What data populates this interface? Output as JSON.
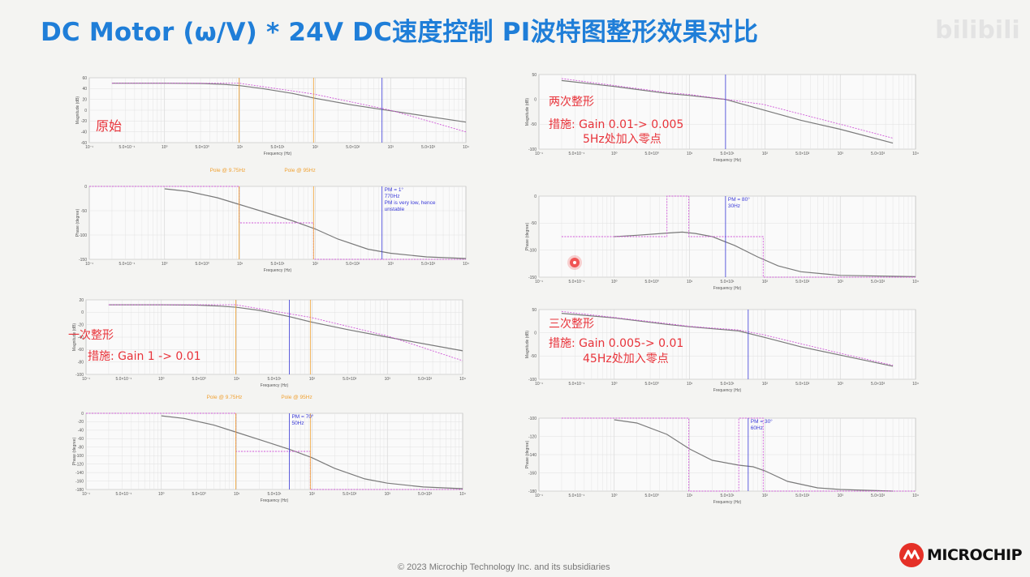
{
  "slide": {
    "title": "DC Motor (ω/V) * 24V DC速度控制 PI波特图整形效果对比",
    "watermark": "bilibili",
    "footer": "© 2023 Microchip Technology Inc. and its subsidiaries",
    "logo_text": "MICROCHIP"
  },
  "labels": {
    "original": "原始",
    "first": "一次整形",
    "first_measure": "措施:  Gain 1 -> 0.01",
    "second": "两次整形",
    "second_measure": "措施: Gain 0.01-> 0.005",
    "second_zero": "5Hz处加入零点",
    "third": "三次整形",
    "third_measure": "措施: Gain 0.005-> 0.01",
    "third_zero": "45Hz处加入零点"
  },
  "colors": {
    "title": "#1f7ed8",
    "curve": "#7a7a7a",
    "asymptote": "#d05ad8",
    "pole": "#f0a030",
    "pm": "#3a3ad8",
    "red": "#e8333a"
  },
  "chart_data": [
    {
      "id": "orig_mag",
      "type": "line",
      "xscale": "log",
      "xlim": [
        0.1,
        10000
      ],
      "ylim": [
        -60,
        60
      ],
      "ytick_labels": [
        "60",
        "40",
        "20",
        "0",
        "-20",
        "-40",
        "-60"
      ],
      "xtick_labels": [
        "10⁻¹",
        "5.0×10⁻¹",
        "10⁰",
        "5.0×10⁰",
        "10¹",
        "5.0×10¹",
        "10²",
        "5.0×10²",
        "10³",
        "5.0×10³",
        "10⁴"
      ],
      "xlabel": "Frequency (Hz)",
      "ylabel": "Magnitude (dB)",
      "series": [
        {
          "role": "curve",
          "x": [
            0.2,
            1,
            3,
            6,
            10,
            20,
            50,
            100,
            300,
            1000,
            10000
          ],
          "y": [
            50,
            50,
            49.5,
            48,
            45.5,
            40,
            31,
            22,
            10,
            -1,
            -22
          ]
        },
        {
          "role": "asymptote",
          "x": [
            0.2,
            9.75,
            95,
            1000,
            10000
          ],
          "y": [
            50,
            50,
            30,
            0,
            -40
          ]
        }
      ],
      "markers": [
        {
          "kind": "pole",
          "x": 9.75,
          "label": ""
        },
        {
          "kind": "pole",
          "x": 95,
          "label": ""
        },
        {
          "kind": "pm",
          "x": 770,
          "label": ""
        }
      ]
    },
    {
      "id": "orig_phase",
      "type": "line",
      "xscale": "log",
      "xlim": [
        0.1,
        10000
      ],
      "ylim": [
        -180,
        0
      ],
      "ytick_labels": [
        "0",
        "-50",
        "-100",
        "-150"
      ],
      "xtick_labels": [
        "10⁻¹",
        "5.0×10⁻¹",
        "10⁰",
        "5.0×10⁰",
        "10¹",
        "5.0×10¹",
        "10²",
        "5.0×10²",
        "10³",
        "5.0×10³",
        "10⁴"
      ],
      "xlabel": "Frequency (Hz)",
      "ylabel": "Phase (degree)",
      "series": [
        {
          "role": "curve",
          "x": [
            1,
            2,
            5,
            10,
            20,
            50,
            100,
            200,
            500,
            1000,
            3000,
            10000
          ],
          "y": [
            -6,
            -12,
            -28,
            -45,
            -62,
            -85,
            -105,
            -130,
            -155,
            -165,
            -174,
            -178
          ]
        },
        {
          "role": "asymptote",
          "x": [
            0.1,
            9.75,
            9.75,
            95,
            95,
            10000
          ],
          "y": [
            0,
            0,
            -90,
            -90,
            -180,
            -180
          ]
        }
      ],
      "markers": [
        {
          "kind": "pole",
          "x": 9.75,
          "label": "Pole @ 9.75Hz"
        },
        {
          "kind": "pole",
          "x": 95,
          "label": "Pole @ 95Hz"
        },
        {
          "kind": "pm",
          "x": 770,
          "label": "PM = 1°",
          "label2": "770Hz",
          "label3": "PM is very low, hence",
          "label4": "unstable"
        }
      ]
    },
    {
      "id": "first_mag",
      "type": "line",
      "xscale": "log",
      "xlim": [
        0.1,
        10000
      ],
      "ylim": [
        -100,
        20
      ],
      "ytick_labels": [
        "20",
        "0",
        "-20",
        "-40",
        "-60",
        "-80",
        "-100"
      ],
      "xtick_labels": [
        "10⁻¹",
        "5.0×10⁻¹",
        "10⁰",
        "5.0×10⁰",
        "10¹",
        "5.0×10¹",
        "10²",
        "5.0×10²",
        "10³",
        "5.0×10³",
        "10⁴"
      ],
      "xlabel": "Frequency (Hz)",
      "ylabel": "Magnitude (dB)",
      "series": [
        {
          "role": "curve",
          "x": [
            0.2,
            1,
            3,
            6,
            10,
            20,
            50,
            100,
            300,
            1000,
            10000
          ],
          "y": [
            12,
            12,
            11.5,
            10,
            8,
            3,
            -7,
            -16,
            -28,
            -40,
            -62
          ]
        },
        {
          "role": "asymptote",
          "x": [
            0.2,
            9.75,
            95,
            1000,
            10000
          ],
          "y": [
            12,
            12,
            -8,
            -38,
            -78
          ]
        }
      ],
      "markers": [
        {
          "kind": "pole",
          "x": 9.75,
          "label": ""
        },
        {
          "kind": "pole",
          "x": 95,
          "label": ""
        },
        {
          "kind": "pm",
          "x": 50,
          "label": ""
        }
      ]
    },
    {
      "id": "first_phase",
      "type": "line",
      "xscale": "log",
      "xlim": [
        0.1,
        10000
      ],
      "ylim": [
        -180,
        0
      ],
      "ytick_labels": [
        "0",
        "-20",
        "-40",
        "-60",
        "-80",
        "-100",
        "-120",
        "-140",
        "-160",
        "-180"
      ],
      "xtick_labels": [
        "10⁻¹",
        "5.0×10⁻¹",
        "10⁰",
        "5.0×10⁰",
        "10¹",
        "5.0×10¹",
        "10²",
        "5.0×10²",
        "10³",
        "5.0×10³",
        "10⁴"
      ],
      "xlabel": "Frequency (Hz)",
      "ylabel": "Phase (degree)",
      "series": [
        {
          "role": "curve",
          "x": [
            1,
            2,
            5,
            10,
            20,
            50,
            100,
            200,
            500,
            1000,
            3000,
            10000
          ],
          "y": [
            -6,
            -12,
            -28,
            -45,
            -62,
            -85,
            -105,
            -130,
            -155,
            -165,
            -174,
            -178
          ]
        },
        {
          "role": "asymptote",
          "x": [
            0.1,
            9.75,
            9.75,
            95,
            95,
            10000
          ],
          "y": [
            0,
            0,
            -90,
            -90,
            -180,
            -180
          ]
        }
      ],
      "markers": [
        {
          "kind": "pole",
          "x": 9.75,
          "label": "Pole @ 9.75Hz"
        },
        {
          "kind": "pole",
          "x": 95,
          "label": "Pole @ 95Hz"
        },
        {
          "kind": "pm",
          "x": 50,
          "label": "PM = 70°",
          "label2": "50Hz"
        }
      ]
    },
    {
      "id": "second_mag",
      "type": "line",
      "xscale": "log",
      "xlim": [
        0.1,
        10000
      ],
      "ylim": [
        -100,
        50
      ],
      "ytick_labels": [
        "50",
        "0",
        "-50",
        "-100"
      ],
      "xtick_labels": [
        "10⁻¹",
        "5.0×10⁻¹",
        "10⁰",
        "5.0×10⁰",
        "10¹",
        "5.0×10¹",
        "10²",
        "5.0×10²",
        "10³",
        "5.0×10³",
        "10⁴"
      ],
      "xlabel": "Frequency (Hz)",
      "ylabel": "Magnitude (dB)",
      "series": [
        {
          "role": "curve",
          "x": [
            0.2,
            1,
            5,
            10,
            30,
            100,
            300,
            1000,
            5000
          ],
          "y": [
            38,
            26,
            12,
            8,
            0,
            -22,
            -42,
            -60,
            -88
          ]
        },
        {
          "role": "asymptote",
          "x": [
            0.2,
            5,
            9.75,
            95,
            1000,
            5000
          ],
          "y": [
            42,
            14,
            10,
            -10,
            -50,
            -78
          ]
        }
      ],
      "markers": [
        {
          "kind": "pm",
          "x": 30,
          "label": ""
        }
      ]
    },
    {
      "id": "second_phase",
      "type": "line",
      "xscale": "log",
      "xlim": [
        0.1,
        10000
      ],
      "ylim": [
        -180,
        0
      ],
      "ytick_labels": [
        "0",
        "-50",
        "-100",
        "-150"
      ],
      "xtick_labels": [
        "10⁻¹",
        "5.0×10⁻¹",
        "10⁰",
        "5.0×10⁰",
        "10¹",
        "5.0×10¹",
        "10²",
        "5.0×10²",
        "10³",
        "5.0×10³",
        "10⁴"
      ],
      "xlabel": "Frequency (Hz)",
      "ylabel": "Phase (degree)",
      "series": [
        {
          "role": "curve",
          "x": [
            1,
            2,
            5,
            8,
            12,
            20,
            40,
            80,
            150,
            300,
            1000,
            10000
          ],
          "y": [
            -90,
            -87,
            -82,
            -80,
            -83,
            -90,
            -110,
            -135,
            -155,
            -168,
            -176,
            -179
          ]
        },
        {
          "role": "asymptote",
          "x": [
            0.2,
            5,
            5,
            9.75,
            9.75,
            95,
            95,
            10000
          ],
          "y": [
            -90,
            -90,
            0,
            0,
            -90,
            -90,
            -180,
            -180
          ]
        }
      ],
      "markers": [
        {
          "kind": "pm",
          "x": 30,
          "label": "PM = 80°",
          "label2": "30Hz"
        }
      ]
    },
    {
      "id": "third_mag",
      "type": "line",
      "xscale": "log",
      "xlim": [
        0.1,
        10000
      ],
      "ylim": [
        -100,
        50
      ],
      "ytick_labels": [
        "50",
        "0",
        "-50",
        "-100"
      ],
      "xtick_labels": [
        "10⁻¹",
        "5.0×10⁻¹",
        "10⁰",
        "5.0×10⁰",
        "10¹",
        "5.0×10¹",
        "10²",
        "5.0×10²",
        "10³",
        "5.0×10³",
        "10⁴"
      ],
      "xlabel": "Frequency (Hz)",
      "ylabel": "Magnitude (dB)",
      "series": [
        {
          "role": "curve",
          "x": [
            0.2,
            1,
            5,
            10,
            45,
            100,
            300,
            1000,
            5000
          ],
          "y": [
            42,
            32,
            18,
            13,
            4,
            -10,
            -30,
            -48,
            -72
          ]
        },
        {
          "role": "asymptote",
          "x": [
            0.2,
            5,
            9.75,
            45,
            95,
            1000,
            5000
          ],
          "y": [
            46,
            20,
            14,
            6,
            -4,
            -44,
            -70
          ]
        }
      ],
      "markers": [
        {
          "kind": "pm",
          "x": 60,
          "label": ""
        }
      ]
    },
    {
      "id": "third_phase",
      "type": "line",
      "xscale": "log",
      "xlim": [
        0.1,
        10000
      ],
      "ylim": [
        -180,
        -90
      ],
      "ytick_labels": [
        "-100",
        "-120",
        "-140",
        "-160",
        "-180"
      ],
      "xtick_labels": [
        "10⁻¹",
        "5.0×10⁻¹",
        "10⁰",
        "5.0×10⁰",
        "10¹",
        "5.0×10¹",
        "10²",
        "5.0×10²",
        "10³",
        "5.0×10³",
        "10⁴"
      ],
      "xlabel": "Frequency (Hz)",
      "ylabel": "Phase (degree)",
      "series": [
        {
          "role": "curve",
          "x": [
            1,
            2,
            5,
            10,
            20,
            45,
            70,
            100,
            200,
            500,
            1000,
            5000
          ],
          "y": [
            -92,
            -96,
            -110,
            -128,
            -142,
            -148,
            -150,
            -155,
            -168,
            -176,
            -178,
            -180
          ]
        },
        {
          "role": "asymptote",
          "x": [
            0.2,
            9.75,
            9.75,
            45,
            45,
            95,
            95,
            10000
          ],
          "y": [
            -90,
            -90,
            -180,
            -180,
            -90,
            -90,
            -180,
            -180
          ]
        }
      ],
      "markers": [
        {
          "kind": "pm",
          "x": 60,
          "label": "PM = 30°",
          "label2": "60Hz"
        }
      ]
    }
  ]
}
